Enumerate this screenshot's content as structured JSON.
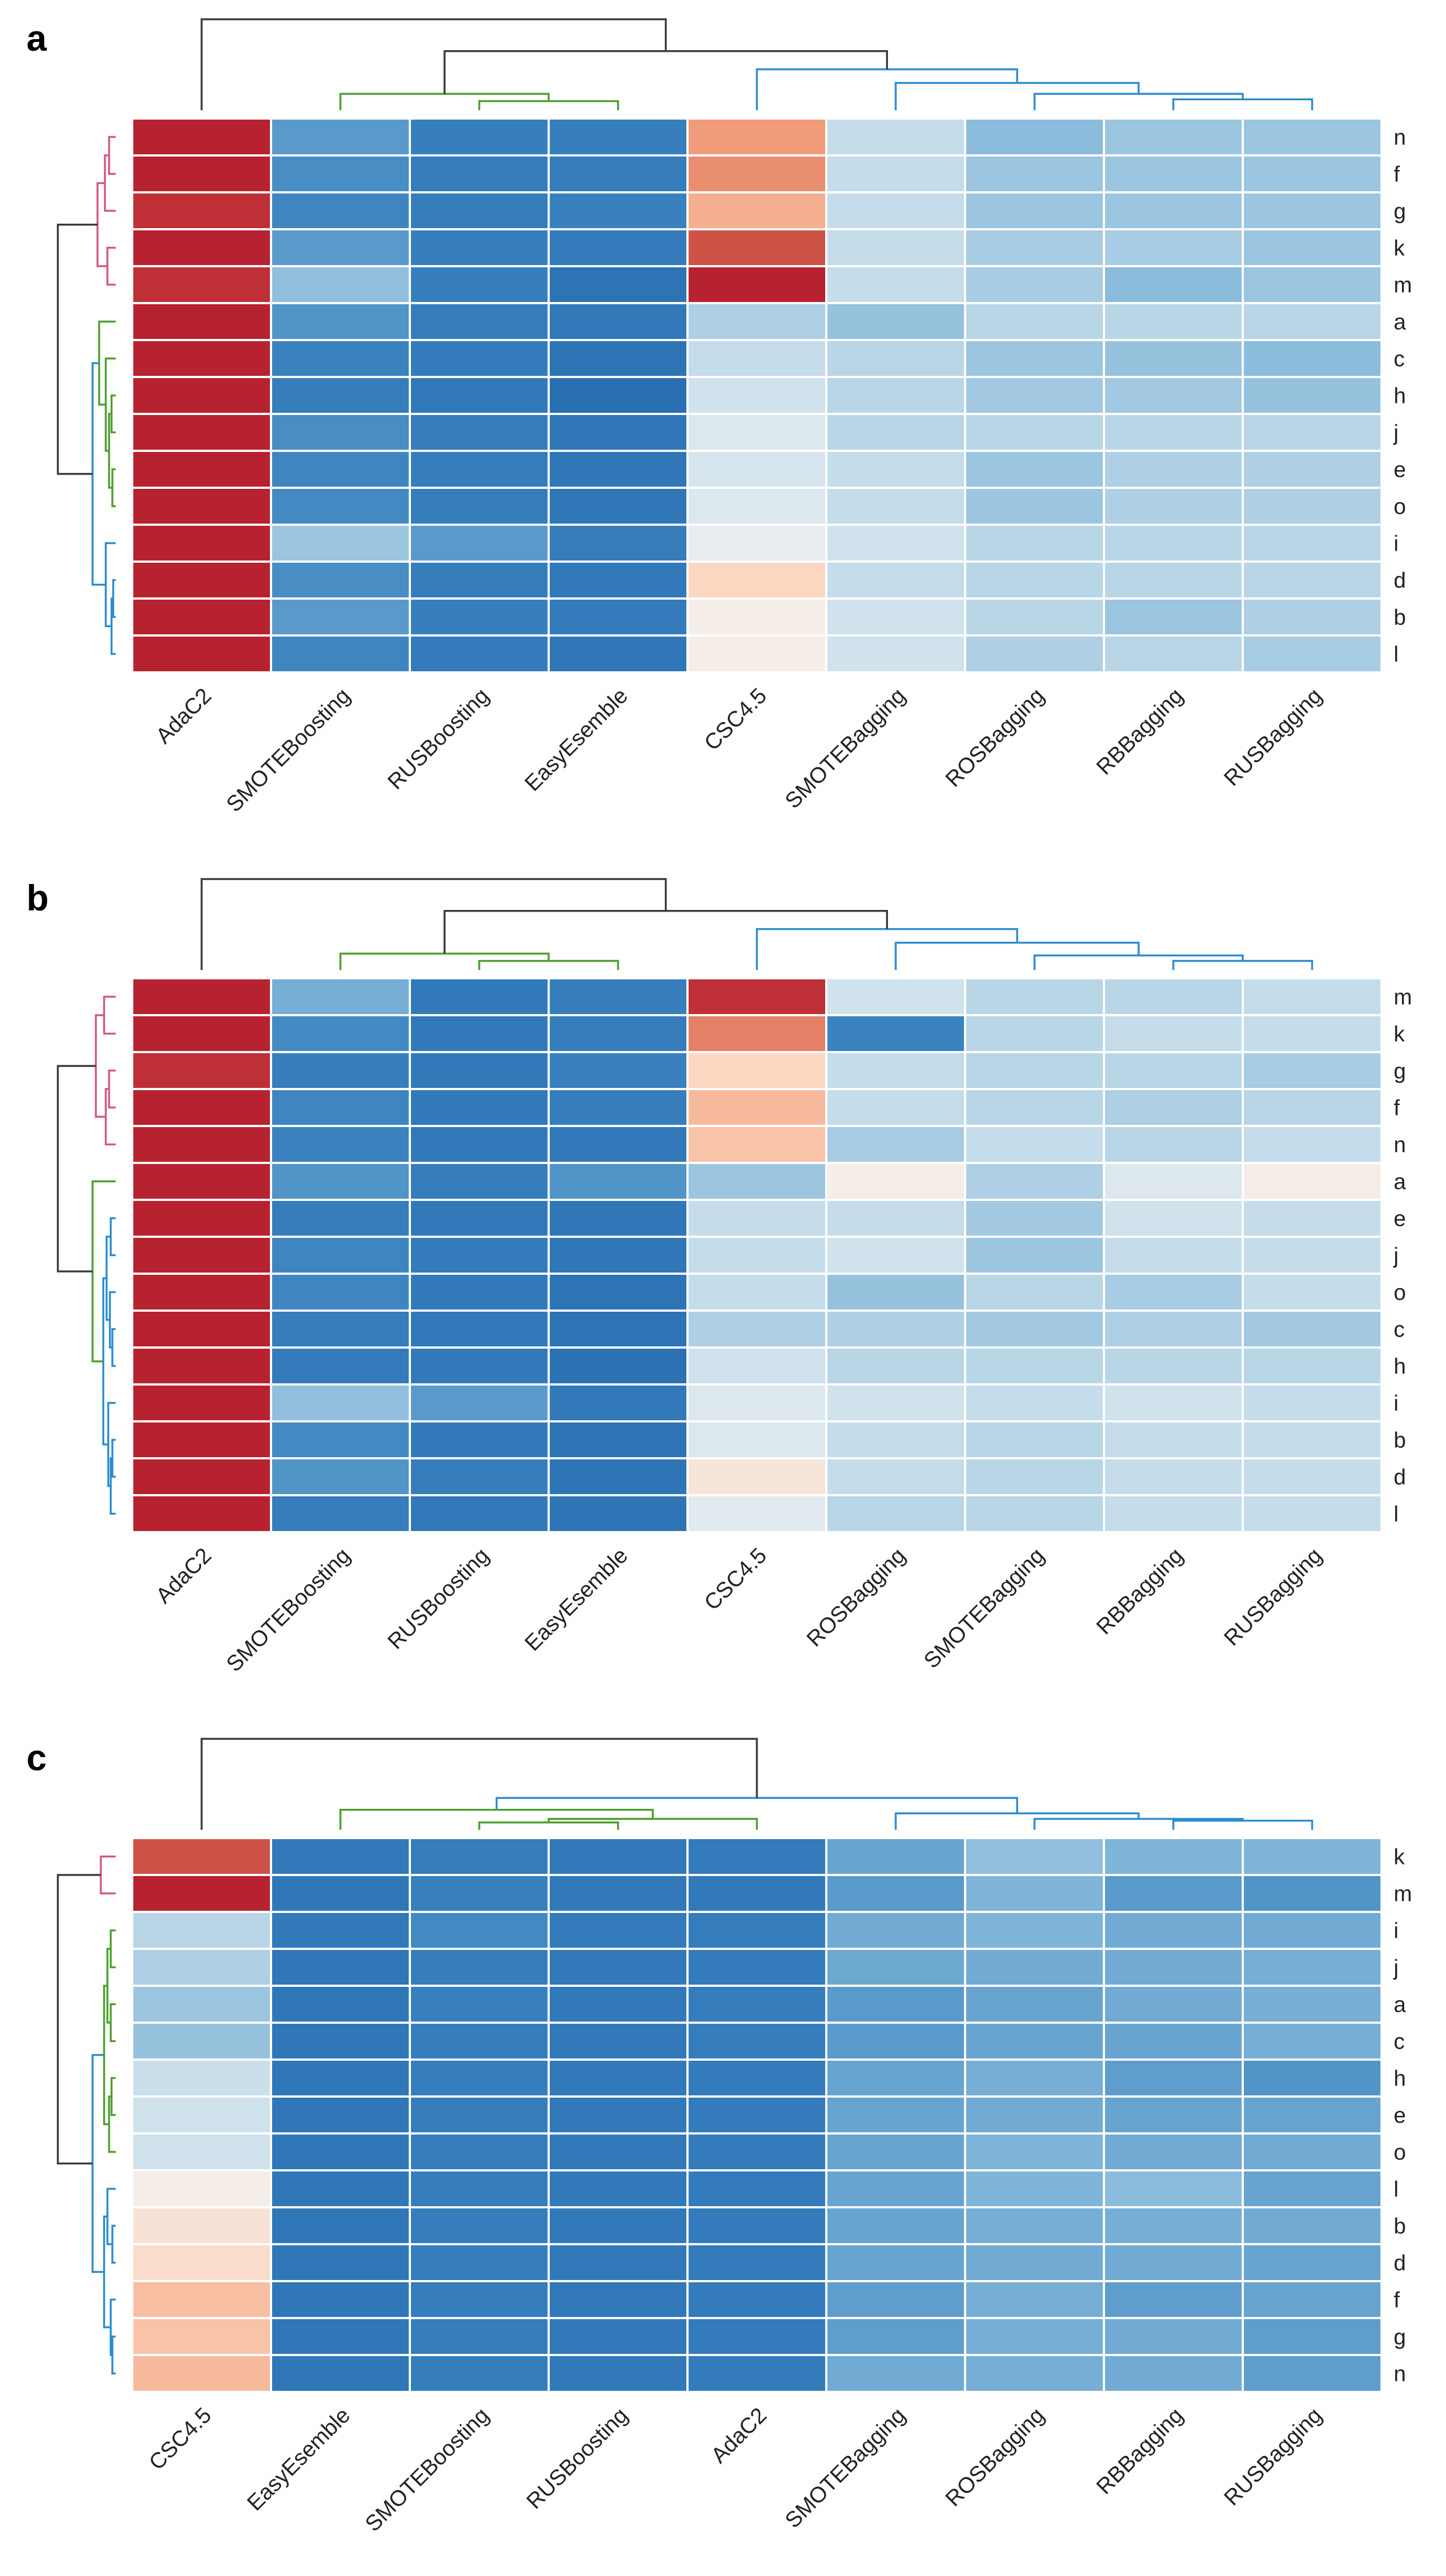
{
  "chart_data": [
    {
      "type": "heatmap",
      "panel": "a",
      "color_scale": "diverging blue (low) to red (high), 0..1 rank intensity",
      "columns": [
        "AdaC2",
        "SMOTEBoosting",
        "RUSBoosting",
        "EasyEsemble",
        "CSC4.5",
        "SMOTEBagging",
        "ROSBagging",
        "RBBagging",
        "RUSBagging"
      ],
      "rows": [
        "n",
        "f",
        "g",
        "k",
        "m",
        "a",
        "c",
        "h",
        "j",
        "e",
        "o",
        "i",
        "d",
        "b",
        "l"
      ],
      "values": [
        [
          0.98,
          0.22,
          0.13,
          0.13,
          0.72,
          0.42,
          0.32,
          0.35,
          0.35
        ],
        [
          0.98,
          0.18,
          0.12,
          0.12,
          0.75,
          0.42,
          0.35,
          0.35,
          0.35
        ],
        [
          0.95,
          0.16,
          0.12,
          0.14,
          0.68,
          0.42,
          0.35,
          0.35,
          0.35
        ],
        [
          0.98,
          0.22,
          0.13,
          0.11,
          0.88,
          0.42,
          0.37,
          0.37,
          0.35
        ],
        [
          0.95,
          0.33,
          0.13,
          0.07,
          0.98,
          0.42,
          0.37,
          0.32,
          0.35
        ],
        [
          0.98,
          0.2,
          0.12,
          0.1,
          0.38,
          0.34,
          0.4,
          0.4,
          0.4
        ],
        [
          0.98,
          0.15,
          0.11,
          0.07,
          0.42,
          0.4,
          0.35,
          0.34,
          0.32
        ],
        [
          0.98,
          0.12,
          0.1,
          0.05,
          0.44,
          0.4,
          0.36,
          0.36,
          0.34
        ],
        [
          0.98,
          0.18,
          0.12,
          0.09,
          0.46,
          0.4,
          0.4,
          0.4,
          0.4
        ],
        [
          0.98,
          0.16,
          0.12,
          0.09,
          0.45,
          0.42,
          0.35,
          0.38,
          0.38
        ],
        [
          0.98,
          0.17,
          0.12,
          0.09,
          0.46,
          0.42,
          0.35,
          0.38,
          0.38
        ],
        [
          0.98,
          0.35,
          0.22,
          0.12,
          0.48,
          0.44,
          0.4,
          0.4,
          0.4
        ],
        [
          0.98,
          0.18,
          0.12,
          0.1,
          0.6,
          0.42,
          0.4,
          0.4,
          0.4
        ],
        [
          0.98,
          0.22,
          0.13,
          0.11,
          0.52,
          0.44,
          0.4,
          0.35,
          0.38
        ],
        [
          0.98,
          0.16,
          0.11,
          0.09,
          0.52,
          0.44,
          0.38,
          0.4,
          0.37
        ]
      ],
      "row_dendrogram": [
        {
          "a": [
            0,
            1
          ],
          "h": 0.08,
          "color": "pink"
        },
        {
          "a": [
            15,
            2
          ],
          "h": 0.13,
          "color": "pink"
        },
        {
          "a": [
            3,
            4
          ],
          "h": 0.1,
          "color": "pink"
        },
        {
          "a": [
            16,
            17
          ],
          "h": 0.22,
          "color": "pink"
        },
        {
          "a": [
            7,
            8
          ],
          "h": 0.05,
          "color": "green"
        },
        {
          "a": [
            9,
            10
          ],
          "h": 0.04,
          "color": "green"
        },
        {
          "a": [
            19,
            20
          ],
          "h": 0.08,
          "color": "green"
        },
        {
          "a": [
            6,
            21
          ],
          "h": 0.12,
          "color": "green"
        },
        {
          "a": [
            5,
            22
          ],
          "h": 0.2,
          "color": "green"
        },
        {
          "a": [
            12,
            13
          ],
          "h": 0.03,
          "color": "blue"
        },
        {
          "a": [
            24,
            14
          ],
          "h": 0.05,
          "color": "blue"
        },
        {
          "a": [
            11,
            25
          ],
          "h": 0.12,
          "color": "blue"
        },
        {
          "a": [
            23,
            26
          ],
          "h": 0.28,
          "color": "blue"
        },
        {
          "a": [
            18,
            27
          ],
          "h": 0.7,
          "color": "black"
        }
      ],
      "col_dendrogram": [
        {
          "a": [
            2,
            3
          ],
          "h": 0.1,
          "color": "green"
        },
        {
          "a": [
            1,
            9
          ],
          "h": 0.18,
          "color": "green"
        },
        {
          "a": [
            7,
            8
          ],
          "h": 0.12,
          "color": "blue"
        },
        {
          "a": [
            6,
            11
          ],
          "h": 0.18,
          "color": "blue"
        },
        {
          "a": [
            5,
            12
          ],
          "h": 0.3,
          "color": "blue"
        },
        {
          "a": [
            4,
            13
          ],
          "h": 0.45,
          "color": "blue"
        },
        {
          "a": [
            10,
            14
          ],
          "h": 0.65,
          "color": "black"
        },
        {
          "a": [
            0,
            15
          ],
          "h": 1.0,
          "color": "black"
        }
      ]
    },
    {
      "type": "heatmap",
      "panel": "b",
      "color_scale": "diverging blue (low) to red (high), 0..1 rank intensity",
      "columns": [
        "AdaC2",
        "SMOTEBoosting",
        "RUSBoosting",
        "EasyEsemble",
        "CSC4.5",
        "ROSBagging",
        "SMOTEBagging",
        "RBBagging",
        "RUSBagging"
      ],
      "rows": [
        "m",
        "k",
        "g",
        "f",
        "n",
        "a",
        "e",
        "j",
        "o",
        "c",
        "h",
        "i",
        "b",
        "d",
        "l"
      ],
      "values": [
        [
          0.98,
          0.28,
          0.1,
          0.13,
          0.95,
          0.44,
          0.4,
          0.4,
          0.42
        ],
        [
          0.98,
          0.17,
          0.1,
          0.12,
          0.78,
          0.15,
          0.4,
          0.42,
          0.42
        ],
        [
          0.95,
          0.13,
          0.1,
          0.14,
          0.6,
          0.42,
          0.4,
          0.4,
          0.37
        ],
        [
          0.98,
          0.16,
          0.1,
          0.12,
          0.66,
          0.42,
          0.4,
          0.38,
          0.4
        ],
        [
          0.98,
          0.15,
          0.1,
          0.1,
          0.64,
          0.37,
          0.42,
          0.4,
          0.42
        ],
        [
          0.98,
          0.2,
          0.12,
          0.2,
          0.35,
          0.52,
          0.38,
          0.46,
          0.52
        ],
        [
          0.98,
          0.12,
          0.1,
          0.09,
          0.42,
          0.42,
          0.36,
          0.44,
          0.42
        ],
        [
          0.98,
          0.16,
          0.11,
          0.09,
          0.42,
          0.44,
          0.35,
          0.42,
          0.42
        ],
        [
          0.98,
          0.16,
          0.1,
          0.07,
          0.42,
          0.34,
          0.4,
          0.37,
          0.42
        ],
        [
          0.98,
          0.12,
          0.1,
          0.07,
          0.38,
          0.38,
          0.36,
          0.38,
          0.36
        ],
        [
          0.98,
          0.11,
          0.1,
          0.06,
          0.44,
          0.4,
          0.4,
          0.4,
          0.4
        ],
        [
          0.98,
          0.33,
          0.22,
          0.1,
          0.46,
          0.44,
          0.42,
          0.44,
          0.42
        ],
        [
          0.98,
          0.17,
          0.1,
          0.08,
          0.46,
          0.42,
          0.4,
          0.42,
          0.42
        ],
        [
          0.98,
          0.2,
          0.12,
          0.08,
          0.55,
          0.42,
          0.4,
          0.42,
          0.42
        ],
        [
          0.98,
          0.12,
          0.1,
          0.08,
          0.47,
          0.4,
          0.4,
          0.42,
          0.42
        ]
      ],
      "row_dendrogram": [
        {
          "a": [
            2,
            3
          ],
          "h": 0.08,
          "color": "pink"
        },
        {
          "a": [
            15,
            4
          ],
          "h": 0.12,
          "color": "pink"
        },
        {
          "a": [
            0,
            1
          ],
          "h": 0.14,
          "color": "pink"
        },
        {
          "a": [
            17,
            16
          ],
          "h": 0.24,
          "color": "pink"
        },
        {
          "a": [
            9,
            10
          ],
          "h": 0.04,
          "color": "blue"
        },
        {
          "a": [
            8,
            19
          ],
          "h": 0.07,
          "color": "blue"
        },
        {
          "a": [
            6,
            7
          ],
          "h": 0.06,
          "color": "blue"
        },
        {
          "a": [
            21,
            20
          ],
          "h": 0.11,
          "color": "blue"
        },
        {
          "a": [
            12,
            13
          ],
          "h": 0.04,
          "color": "blue"
        },
        {
          "a": [
            23,
            14
          ],
          "h": 0.06,
          "color": "blue"
        },
        {
          "a": [
            11,
            24
          ],
          "h": 0.09,
          "color": "blue"
        },
        {
          "a": [
            22,
            25
          ],
          "h": 0.15,
          "color": "blue"
        },
        {
          "a": [
            5,
            26
          ],
          "h": 0.28,
          "color": "green"
        },
        {
          "a": [
            18,
            27
          ],
          "h": 0.7,
          "color": "black"
        }
      ],
      "col_dendrogram": [
        {
          "a": [
            2,
            3
          ],
          "h": 0.1,
          "color": "green"
        },
        {
          "a": [
            1,
            9
          ],
          "h": 0.18,
          "color": "green"
        },
        {
          "a": [
            7,
            8
          ],
          "h": 0.1,
          "color": "blue"
        },
        {
          "a": [
            6,
            11
          ],
          "h": 0.16,
          "color": "blue"
        },
        {
          "a": [
            5,
            12
          ],
          "h": 0.3,
          "color": "blue"
        },
        {
          "a": [
            4,
            13
          ],
          "h": 0.45,
          "color": "blue"
        },
        {
          "a": [
            10,
            14
          ],
          "h": 0.65,
          "color": "black"
        },
        {
          "a": [
            0,
            15
          ],
          "h": 1.0,
          "color": "black"
        }
      ]
    },
    {
      "type": "heatmap",
      "panel": "c",
      "color_scale": "diverging blue (low) to red (high), 0..1 rank intensity",
      "columns": [
        "CSC4.5",
        "EasyEsemble",
        "SMOTEBoosting",
        "RUSBoosting",
        "AdaC2",
        "SMOTEBagging",
        "ROSBagging",
        "RBBagging",
        "RUSBagging"
      ],
      "rows": [
        "k",
        "m",
        "i",
        "j",
        "a",
        "c",
        "h",
        "e",
        "o",
        "l",
        "b",
        "d",
        "f",
        "g",
        "n"
      ],
      "values": [
        [
          0.88,
          0.1,
          0.12,
          0.1,
          0.11,
          0.25,
          0.33,
          0.3,
          0.3
        ],
        [
          0.98,
          0.09,
          0.14,
          0.1,
          0.1,
          0.22,
          0.3,
          0.22,
          0.2
        ],
        [
          0.4,
          0.1,
          0.17,
          0.11,
          0.12,
          0.27,
          0.3,
          0.27,
          0.27
        ],
        [
          0.38,
          0.09,
          0.12,
          0.1,
          0.11,
          0.26,
          0.27,
          0.27,
          0.28
        ],
        [
          0.35,
          0.09,
          0.14,
          0.1,
          0.12,
          0.22,
          0.25,
          0.27,
          0.28
        ],
        [
          0.34,
          0.09,
          0.12,
          0.1,
          0.12,
          0.22,
          0.25,
          0.25,
          0.28
        ],
        [
          0.43,
          0.09,
          0.12,
          0.1,
          0.11,
          0.25,
          0.28,
          0.23,
          0.2
        ],
        [
          0.44,
          0.09,
          0.12,
          0.1,
          0.11,
          0.25,
          0.27,
          0.25,
          0.25
        ],
        [
          0.44,
          0.09,
          0.12,
          0.1,
          0.11,
          0.25,
          0.3,
          0.27,
          0.27
        ],
        [
          0.52,
          0.09,
          0.12,
          0.1,
          0.11,
          0.25,
          0.3,
          0.32,
          0.25
        ],
        [
          0.56,
          0.09,
          0.12,
          0.1,
          0.11,
          0.25,
          0.28,
          0.28,
          0.27
        ],
        [
          0.58,
          0.09,
          0.12,
          0.1,
          0.11,
          0.25,
          0.27,
          0.27,
          0.25
        ],
        [
          0.65,
          0.09,
          0.12,
          0.1,
          0.11,
          0.23,
          0.28,
          0.23,
          0.25
        ],
        [
          0.64,
          0.09,
          0.12,
          0.1,
          0.11,
          0.23,
          0.28,
          0.27,
          0.23
        ],
        [
          0.66,
          0.09,
          0.12,
          0.1,
          0.11,
          0.27,
          0.28,
          0.27,
          0.23
        ]
      ],
      "row_dendrogram": [
        {
          "a": [
            0,
            1
          ],
          "h": 0.18,
          "color": "pink"
        },
        {
          "a": [
            2,
            3
          ],
          "h": 0.06,
          "color": "green"
        },
        {
          "a": [
            4,
            5
          ],
          "h": 0.06,
          "color": "green"
        },
        {
          "a": [
            16,
            17
          ],
          "h": 0.1,
          "color": "green"
        },
        {
          "a": [
            6,
            7
          ],
          "h": 0.05,
          "color": "green"
        },
        {
          "a": [
            19,
            8
          ],
          "h": 0.08,
          "color": "green"
        },
        {
          "a": [
            18,
            20
          ],
          "h": 0.14,
          "color": "green"
        },
        {
          "a": [
            10,
            11
          ],
          "h": 0.04,
          "color": "blue"
        },
        {
          "a": [
            9,
            22
          ],
          "h": 0.1,
          "color": "blue"
        },
        {
          "a": [
            13,
            14
          ],
          "h": 0.04,
          "color": "blue"
        },
        {
          "a": [
            12,
            24
          ],
          "h": 0.06,
          "color": "blue"
        },
        {
          "a": [
            23,
            25
          ],
          "h": 0.14,
          "color": "blue"
        },
        {
          "a": [
            21,
            26
          ],
          "h": 0.28,
          "color": "blue"
        },
        {
          "a": [
            15,
            27
          ],
          "h": 0.7,
          "color": "black"
        }
      ],
      "col_dendrogram": [
        {
          "a": [
            2,
            3
          ],
          "h": 0.08,
          "color": "green"
        },
        {
          "a": [
            9,
            4
          ],
          "h": 0.12,
          "color": "green"
        },
        {
          "a": [
            1,
            10
          ],
          "h": 0.22,
          "color": "green"
        },
        {
          "a": [
            7,
            8
          ],
          "h": 0.1,
          "color": "blue"
        },
        {
          "a": [
            6,
            12
          ],
          "h": 0.12,
          "color": "blue"
        },
        {
          "a": [
            5,
            13
          ],
          "h": 0.18,
          "color": "blue"
        },
        {
          "a": [
            11,
            14
          ],
          "h": 0.35,
          "color": "blue"
        },
        {
          "a": [
            0,
            15
          ],
          "h": 1.0,
          "color": "black"
        }
      ]
    }
  ],
  "palette": {
    "pink": "#d5577e",
    "green": "#4c9f2d",
    "blue": "#2a8ccf",
    "black": "#3a3a3a"
  }
}
